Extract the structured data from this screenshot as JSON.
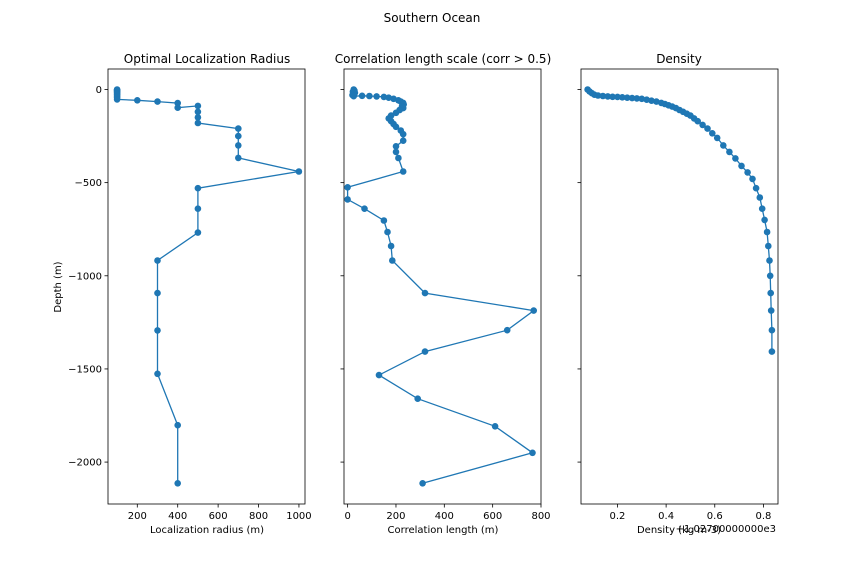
{
  "figure": {
    "suptitle": "Southern Ocean",
    "series_color": "#1f77b4"
  },
  "chart_data": [
    {
      "type": "line",
      "title": "Optimal Localization Radius",
      "xlabel": "Localization radius (m)",
      "ylabel": "Depth (m)",
      "xlim": [
        55,
        1030
      ],
      "ylim": [
        -2225,
        110
      ],
      "xticks": [
        200,
        400,
        600,
        800,
        1000
      ],
      "yticks": [
        0,
        -500,
        -1000,
        -1500,
        -2000
      ],
      "ytick_labels": [
        "0",
        "−500",
        "−1000",
        "−1500",
        "−2000"
      ],
      "x": [
        100,
        100,
        100,
        100,
        100,
        100,
        100,
        100,
        100,
        100,
        100,
        200,
        300,
        400,
        400,
        500,
        500,
        500,
        500,
        700,
        700,
        700,
        700,
        1000,
        500,
        500,
        500,
        300,
        300,
        300,
        300,
        400,
        400
      ],
      "y": [
        0,
        -3,
        -6,
        -10,
        -14,
        -19,
        -24,
        -30,
        -37,
        -44,
        -53,
        -58,
        -65,
        -73,
        -98,
        -88,
        -120,
        -150,
        -180,
        -210,
        -250,
        -300,
        -367,
        -440,
        -530,
        -640,
        -768,
        -918,
        -1093,
        -1293,
        -1526,
        -1802,
        -2114
      ]
    },
    {
      "type": "line",
      "title": "Correlation length scale (corr > 0.5)",
      "xlabel": "Correlation length (m)",
      "xlim": [
        -15,
        800
      ],
      "ylim": [
        -2225,
        110
      ],
      "xticks": [
        0,
        200,
        400,
        600,
        800
      ],
      "yticks": [
        0,
        -500,
        -1000,
        -1500,
        -2000
      ],
      "x": [
        25,
        28,
        22,
        30,
        25,
        20,
        25,
        60,
        90,
        120,
        150,
        170,
        190,
        210,
        220,
        230,
        232,
        225,
        230,
        215,
        200,
        180,
        170,
        180,
        190,
        200,
        220,
        230,
        230,
        200,
        200,
        210,
        230,
        0,
        0,
        70,
        150,
        165,
        180,
        185,
        320,
        770,
        660,
        320,
        130,
        290,
        610,
        765,
        310
      ],
      "y": [
        0,
        -6,
        -12,
        -18,
        -24,
        -30,
        -36,
        -34,
        -35,
        -37,
        -40,
        -44,
        -50,
        -58,
        -65,
        -72,
        -80,
        -90,
        -100,
        -110,
        -125,
        -140,
        -155,
        -170,
        -185,
        -200,
        -220,
        -240,
        -275,
        -305,
        -335,
        -368,
        -440,
        -525,
        -590,
        -640,
        -703,
        -765,
        -840,
        -918,
        -1093,
        -1187,
        -1292,
        -1407,
        -1533,
        -1660,
        -1808,
        -1950,
        -2114
      ]
    },
    {
      "type": "line",
      "title": "Density",
      "xlabel": "Density (kg m-3)",
      "offset_text": "+1.02700000000e3",
      "xlim": [
        0.05,
        0.86
      ],
      "ylim": [
        -2225,
        110
      ],
      "xticks": [
        0.2,
        0.4,
        0.6,
        0.8
      ],
      "yticks": [
        0,
        -500,
        -1000,
        -1500,
        -2000
      ],
      "x": [
        0.077,
        0.085,
        0.095,
        0.105,
        0.12,
        0.14,
        0.16,
        0.18,
        0.2,
        0.22,
        0.24,
        0.26,
        0.28,
        0.3,
        0.32,
        0.34,
        0.36,
        0.38,
        0.395,
        0.41,
        0.425,
        0.44,
        0.455,
        0.47,
        0.485,
        0.5,
        0.515,
        0.53,
        0.55,
        0.57,
        0.59,
        0.61,
        0.635,
        0.66,
        0.685,
        0.71,
        0.735,
        0.755,
        0.77,
        0.785,
        0.795,
        0.805,
        0.815,
        0.82,
        0.825,
        0.828,
        0.83,
        0.832,
        0.835,
        0.835
      ],
      "y": [
        0,
        -10,
        -20,
        -28,
        -32,
        -35,
        -37,
        -39,
        -40,
        -42,
        -44,
        -46,
        -48,
        -50,
        -55,
        -60,
        -65,
        -72,
        -78,
        -85,
        -92,
        -100,
        -110,
        -120,
        -130,
        -140,
        -155,
        -170,
        -190,
        -210,
        -235,
        -260,
        -300,
        -335,
        -370,
        -410,
        -445,
        -480,
        -530,
        -580,
        -640,
        -700,
        -765,
        -840,
        -918,
        -1000,
        -1093,
        -1187,
        -1292,
        -1407
      ]
    }
  ]
}
